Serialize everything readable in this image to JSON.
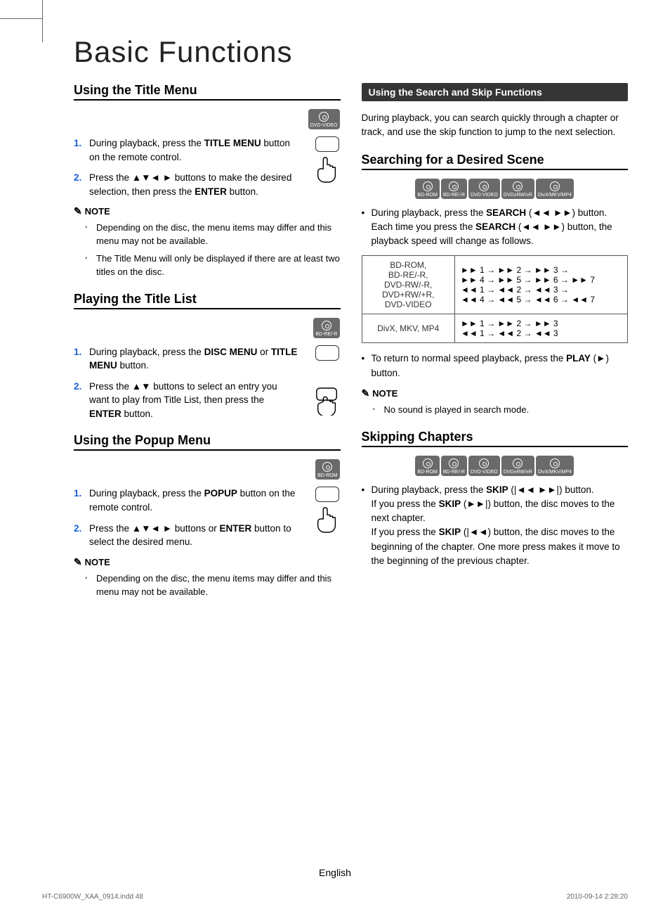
{
  "page_title": "Basic Functions",
  "left": {
    "h1": "Using the Title Menu",
    "badge1": "DVD-VIDEO",
    "step1_1": "During playback, press the <b>TITLE MENU</b> button on the remote control.",
    "step1_2": "Press the ▲▼◄ ► buttons to make the desired selection, then press the <b>ENTER</b> button.",
    "note_label": "NOTE",
    "note1_1": "Depending on the disc, the menu items may differ and this menu may not be available.",
    "note1_2": "The Title Menu will only be displayed if there are at least two titles on the disc.",
    "h2": "Playing the Title List",
    "badge2": "BD-RE/-R",
    "step2_1": "During playback, press the <b>DISC MENU</b> or <b>TITLE MENU</b> button.",
    "step2_2": "Press the ▲▼ buttons to select an entry you want to play from Title List, then press the <b>ENTER</b> button.",
    "h3": "Using the Popup Menu",
    "badge3": "BD-ROM",
    "step3_1": "During playback, press the <b>POPUP</b> button on the remote control.",
    "step3_2": "Press the ▲▼◄ ► buttons or <b>ENTER</b> button to select the desired menu.",
    "note3_1": "Depending on the disc, the menu items may differ and this menu may not be available."
  },
  "right": {
    "banner": "Using the Search and Skip Functions",
    "intro": "During playback, you can search quickly through a chapter or track, and use the skip function to jump to the next selection.",
    "h1": "Searching for a Desired Scene",
    "badges1": [
      "BD-ROM",
      "BD-RE/-R",
      "DVD-VIDEO",
      "DVD±RW/±R",
      "DivX/MKV/MP4"
    ],
    "bullet1": "During playback, press the <b>SEARCH</b> (◄◄ ►►) button.<br>Each time you press the <b>SEARCH</b> (◄◄ ►►) button, the playback speed will change as follows.",
    "table": {
      "r1c1": "BD-ROM,\nBD-RE/-R,\nDVD-RW/-R,\nDVD+RW/+R,\nDVD-VIDEO",
      "r1c2": "►► 1 → ►► 2 → ►► 3 →\n►► 4 → ►► 5 → ►► 6 → ►► 7\n◄◄ 1 → ◄◄ 2 → ◄◄ 3 →\n◄◄ 4 → ◄◄ 5 → ◄◄ 6 → ◄◄ 7",
      "r2c1": "DivX, MKV, MP4",
      "r2c2": "►► 1 → ►► 2 → ►► 3\n◄◄ 1 → ◄◄ 2 → ◄◄ 3"
    },
    "bullet2": "To return to normal speed playback, press the <b>PLAY</b> (►) button.",
    "note1_1": "No sound is played in search mode.",
    "h2": "Skipping Chapters",
    "badges2": [
      "BD-ROM",
      "BD-RE/-R",
      "DVD-VIDEO",
      "DVD±RW/±R",
      "DivX/MKV/MP4"
    ],
    "bullet3": "During playback, press the <b>SKIP</b> (|◄◄ ►►|) button.<br>If you press the <b>SKIP</b> (►►|) button, the disc moves to the next chapter.<br>If you press the <b>SKIP</b> (|◄◄) button, the disc moves to the beginning of the chapter. One more press makes it move to the beginning of the previous chapter."
  },
  "footer_lang": "English",
  "meta_left": "HT-C6900W_XAA_0914.indd   48",
  "meta_right": "2010-09-14   2:28:20"
}
